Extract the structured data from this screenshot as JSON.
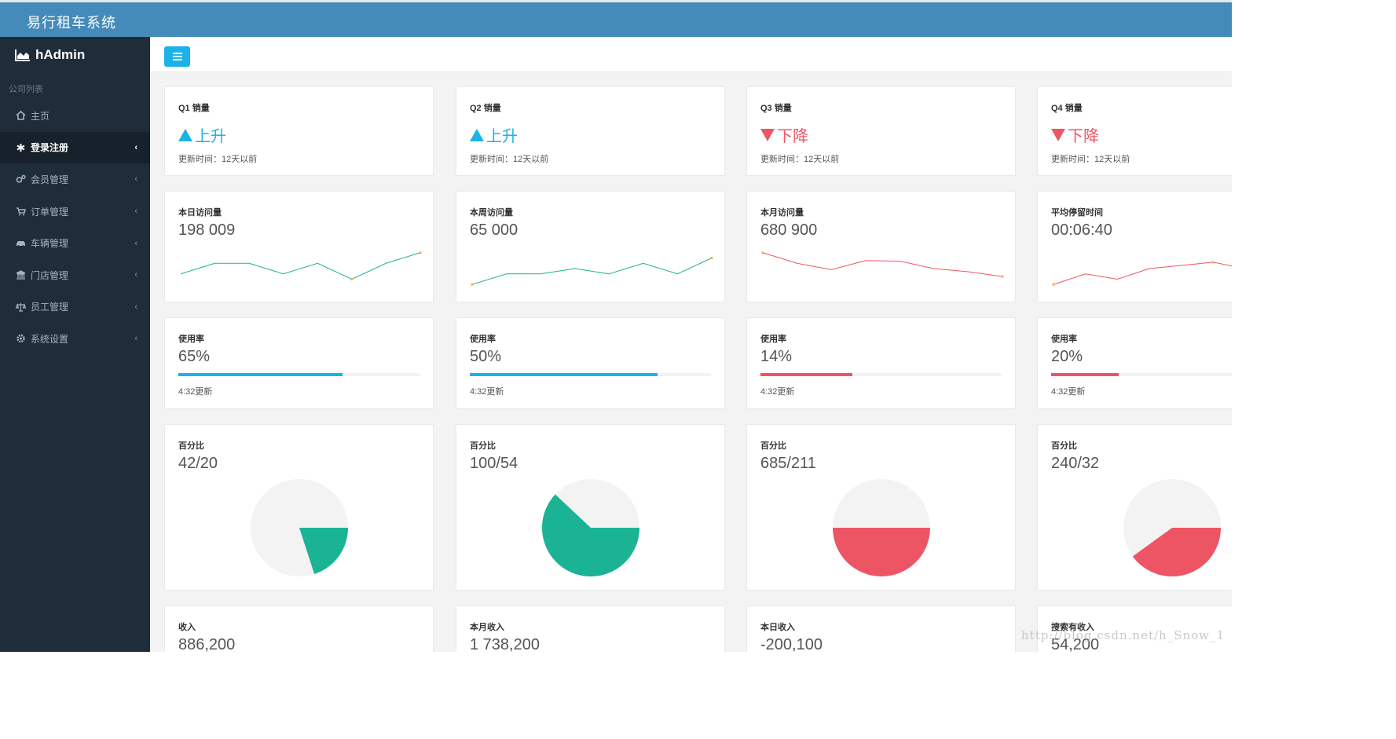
{
  "app": {
    "title": "易行租车系统"
  },
  "sidebar": {
    "logo": "hAdmin",
    "section_label": "公司列表",
    "items": [
      {
        "label": "主页",
        "icon": "home-icon",
        "active": false,
        "chevron": false
      },
      {
        "label": "登录注册",
        "icon": "asterisk-icon",
        "active": true,
        "chevron": true
      },
      {
        "label": "会员管理",
        "icon": "cogs-icon",
        "active": false,
        "chevron": true
      },
      {
        "label": "订单管理",
        "icon": "cart-icon",
        "active": false,
        "chevron": true
      },
      {
        "label": "车辆管理",
        "icon": "car-icon",
        "active": false,
        "chevron": true
      },
      {
        "label": "门店管理",
        "icon": "bank-icon",
        "active": false,
        "chevron": true
      },
      {
        "label": "员工管理",
        "icon": "balance-icon",
        "active": false,
        "chevron": true
      },
      {
        "label": "系统设置",
        "icon": "gear-icon",
        "active": false,
        "chevron": true
      }
    ]
  },
  "colors": {
    "blue": "#1ab3e8",
    "red": "#ed5565",
    "green": "#1ab394",
    "header": "#448bb9",
    "sidebar": "#1f2d3a"
  },
  "sales": [
    {
      "title": "Q1 销量",
      "trend": "up",
      "trend_label": "上升",
      "update": "更新时间：12天以前"
    },
    {
      "title": "Q2 销量",
      "trend": "up",
      "trend_label": "上升",
      "update": "更新时间：12天以前"
    },
    {
      "title": "Q3 销量",
      "trend": "down",
      "trend_label": "下降",
      "update": "更新时间：12天以前"
    },
    {
      "title": "Q4 销量",
      "trend": "down",
      "trend_label": "下降",
      "update": "更新时间：12天以前"
    }
  ],
  "visits": [
    {
      "title": "本日访问量",
      "value": "198 009",
      "color": "#1ab394",
      "points": [
        3,
        5,
        5,
        3,
        5,
        2,
        5,
        7
      ]
    },
    {
      "title": "本周访问量",
      "value": "65 000",
      "color": "#1ab394",
      "points": [
        1,
        3,
        3,
        4,
        3,
        5,
        3,
        6
      ]
    },
    {
      "title": "本月访问量",
      "value": "680 900",
      "color": "#ed5565",
      "points": [
        7,
        5,
        3.8,
        5.5,
        5.4,
        4,
        3.4,
        2.5
      ]
    },
    {
      "title": "平均停留时间",
      "value": "00:06:40",
      "color": "#ed5565",
      "points": [
        1,
        3,
        2,
        4,
        4.6,
        5.2,
        4
      ]
    }
  ],
  "usage": [
    {
      "title": "使用率",
      "value": "65%",
      "fraction": 0.68,
      "color": "#1ab3e8",
      "update": "4:32更新"
    },
    {
      "title": "使用率",
      "value": "50%",
      "fraction": 0.78,
      "color": "#1ab3e8",
      "update": "4:32更新"
    },
    {
      "title": "使用率",
      "value": "14%",
      "fraction": 0.38,
      "color": "#ed5565",
      "update": "4:32更新"
    },
    {
      "title": "使用率",
      "value": "20%",
      "fraction": 0.28,
      "color": "#ed5565",
      "update": "4:32更新"
    }
  ],
  "percent": [
    {
      "title": "百分比",
      "value": "42/20",
      "fraction": 0.2,
      "color": "#1ab394"
    },
    {
      "title": "百分比",
      "value": "100/54",
      "fraction": 0.62,
      "color": "#1ab394"
    },
    {
      "title": "百分比",
      "value": "685/211",
      "fraction": 0.5,
      "color": "#ed5565"
    },
    {
      "title": "百分比",
      "value": "240/32",
      "fraction": 0.4,
      "color": "#ed5565"
    }
  ],
  "income": [
    {
      "title": "收入",
      "value": "886,200"
    },
    {
      "title": "本月收入",
      "value": "1 738,200"
    },
    {
      "title": "本日收入",
      "value": "-200,100"
    },
    {
      "title": "搜索有收入",
      "value": "54,200"
    }
  ],
  "watermark": "http://blog.csdn.net/h_Snow_1"
}
